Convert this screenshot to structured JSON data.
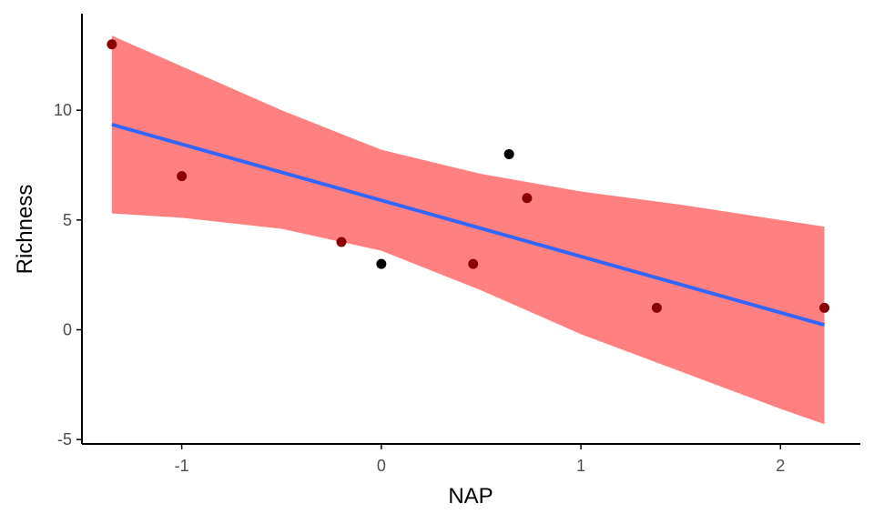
{
  "chart_data": {
    "type": "scatter",
    "xlabel": "NAP",
    "ylabel": "Richness",
    "xlim": [
      -1.5,
      2.4
    ],
    "ylim": [
      -5.2,
      14.4
    ],
    "x_ticks": [
      -1,
      0,
      1,
      2
    ],
    "y_ticks": [
      -5,
      0,
      5,
      10
    ],
    "x_tick_labels": [
      "-1",
      "0",
      "1",
      "2"
    ],
    "y_tick_labels": [
      "-5",
      "0",
      "5",
      "10"
    ],
    "grid": false,
    "legend": "none",
    "points": [
      {
        "x": -1.35,
        "y": 13
      },
      {
        "x": -1.0,
        "y": 7
      },
      {
        "x": -0.2,
        "y": 4
      },
      {
        "x": 0.0,
        "y": 3
      },
      {
        "x": 0.46,
        "y": 3
      },
      {
        "x": 0.64,
        "y": 8
      },
      {
        "x": 0.73,
        "y": 6
      },
      {
        "x": 1.38,
        "y": 1
      },
      {
        "x": 2.22,
        "y": 1
      }
    ],
    "fit_line": {
      "x": [
        -1.35,
        2.22
      ],
      "y": [
        9.35,
        0.22
      ]
    },
    "confidence_band": {
      "x": [
        -1.35,
        -1.0,
        -0.5,
        0.0,
        0.5,
        1.0,
        1.5,
        2.0,
        2.22
      ],
      "upper": [
        13.4,
        12.0,
        10.0,
        8.2,
        7.1,
        6.3,
        5.7,
        5.0,
        4.7
      ],
      "lower": [
        5.3,
        5.1,
        4.6,
        3.6,
        1.8,
        -0.2,
        -1.9,
        -3.6,
        -4.3
      ]
    },
    "colors": {
      "band": "#ff8080",
      "line": "#3366ff",
      "point_outside": "#000000",
      "point_inside": "#8b0000",
      "axis": "#000000"
    }
  }
}
